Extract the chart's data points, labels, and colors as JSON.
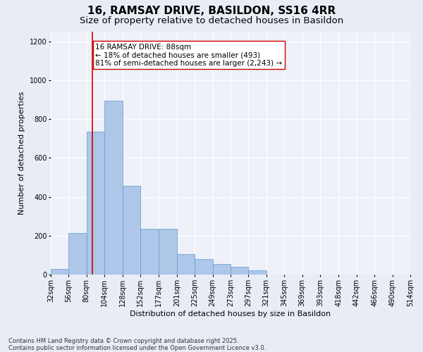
{
  "title_line1": "16, RAMSAY DRIVE, BASILDON, SS16 4RR",
  "title_line2": "Size of property relative to detached houses in Basildon",
  "xlabel": "Distribution of detached houses by size in Basildon",
  "ylabel": "Number of detached properties",
  "footnote": "Contains HM Land Registry data © Crown copyright and database right 2025.\nContains public sector information licensed under the Open Government Licence v3.0.",
  "bar_edges": [
    32,
    56,
    80,
    104,
    128,
    152,
    177,
    201,
    225,
    249,
    273,
    297,
    321,
    345,
    369,
    393,
    418,
    442,
    466,
    490,
    514
  ],
  "bar_values": [
    30,
    215,
    735,
    895,
    455,
    235,
    235,
    105,
    80,
    55,
    40,
    20,
    0,
    0,
    0,
    0,
    0,
    0,
    0,
    0
  ],
  "bar_color": "#aec6e8",
  "bar_edgecolor": "#5b9bd5",
  "vline_x": 88,
  "vline_color": "#cc0000",
  "annotation_text": "16 RAMSAY DRIVE: 88sqm\n← 18% of detached houses are smaller (493)\n81% of semi-detached houses are larger (2,243) →",
  "annotation_box_edgecolor": "#cc0000",
  "annotation_box_facecolor": "#ffffff",
  "ylim": [
    0,
    1250
  ],
  "yticks": [
    0,
    200,
    400,
    600,
    800,
    1000,
    1200
  ],
  "bg_color": "#e8edf5",
  "plot_bg_color": "#eef1f8",
  "grid_color": "#ffffff",
  "title_fontsize": 11,
  "subtitle_fontsize": 9.5,
  "tick_label_fontsize": 7,
  "axis_label_fontsize": 8,
  "annotation_fontsize": 7.5,
  "footnote_fontsize": 6
}
